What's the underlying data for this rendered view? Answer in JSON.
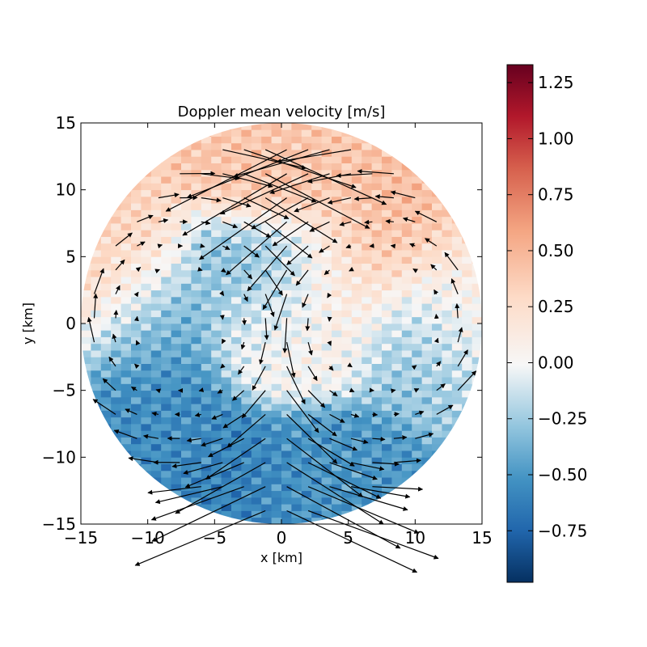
{
  "chart_data": {
    "type": "heatmap",
    "title": "Doppler mean velocity [m/s]",
    "xlabel": "x [km]",
    "ylabel": "y [km]",
    "xlim": [
      -15,
      15
    ],
    "ylim": [
      -15,
      15
    ],
    "x_ticks": [
      -15,
      -10,
      -5,
      0,
      5,
      10,
      15
    ],
    "y_ticks": [
      -15,
      -10,
      -5,
      0,
      5,
      10,
      15
    ],
    "x_tick_labels": [
      "−15",
      "−10",
      "−5",
      "0",
      "5",
      "10",
      "15"
    ],
    "y_tick_labels": [
      "−15",
      "−10",
      "−5",
      "0",
      "5",
      "10",
      "15"
    ],
    "domain_radius_km": 15,
    "colormap": "RdBu_r",
    "colorbar": {
      "vmin": -0.98,
      "vmax": 1.33,
      "ticks": [
        -0.75,
        -0.5,
        -0.25,
        0.0,
        0.25,
        0.5,
        0.75,
        1.0,
        1.25
      ],
      "tick_labels": [
        "−0.75",
        "−0.50",
        "−0.25",
        "0.00",
        "0.25",
        "0.50",
        "0.75",
        "1.00",
        "1.25"
      ]
    },
    "grid": false,
    "velocity_field": {
      "pattern": "two counter-rotating cells about x = 0",
      "flow": "upward along x ≈ −12 and x ≈ +12, eastward along y ≈ +14, westward along y ≈ −13"
    },
    "regions": [
      {
        "x": -12.5,
        "y": 3,
        "value": 0.35
      },
      {
        "x": -10,
        "y": 0,
        "value": -0.45
      },
      {
        "x": -9,
        "y": -7,
        "value": -0.55
      },
      {
        "x": -3,
        "y": -12.5,
        "value": -0.6
      },
      {
        "x": 3,
        "y": -12.5,
        "value": -0.5
      },
      {
        "x": 0,
        "y": 12,
        "value": 0.4
      },
      {
        "x": 8,
        "y": 6,
        "value": 0.45
      },
      {
        "x": 11,
        "y": 0,
        "value": -0.3
      },
      {
        "x": 0,
        "y": 0,
        "value": 0.05
      },
      {
        "x": -1,
        "y": 3,
        "value": -0.35
      },
      {
        "x": 4,
        "y": 3,
        "value": 0.15
      },
      {
        "x": 13,
        "y": 2,
        "value": 0.2
      }
    ]
  }
}
